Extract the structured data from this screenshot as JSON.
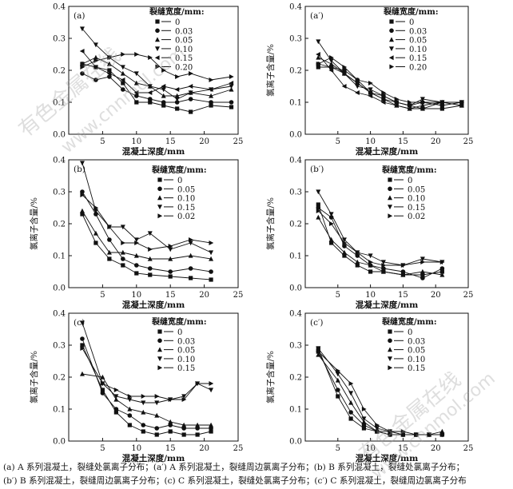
{
  "colors": {
    "ink": "#111111",
    "watermark": "#a0a0a0"
  },
  "axes": {
    "ylabel_left": "氯离子含量/%",
    "ylabel_right": "氯离子含量/%",
    "xlabel": "混凝土深度/mm",
    "legend_title": "裂缝宽度/mm:"
  },
  "watermark": {
    "text1": "有色金属在线",
    "text2": "www.cnnmol.com"
  },
  "caption": {
    "line1": "(a) A 系列混凝土，裂缝处氯离子分布；(a′) A 系列混凝土，裂缝周边氯离子分布；(b) B 系列混凝土，裂缝处氯离子分布；",
    "line2": "(b′) B 系列混凝土，裂缝周边氯离子分布；(c) C 系列混凝土，裂缝处氯离子分布；(c′) C 系列混凝土，裂缝周边氯离子分布"
  },
  "chart_data": [
    {
      "type": "line",
      "panel": "(a)",
      "legend_title": "裂缝宽度/mm:",
      "xlim": [
        0,
        25
      ],
      "ylim": [
        0,
        0.4
      ],
      "xticks": [
        5,
        10,
        15,
        20,
        25
      ],
      "yticks": [
        0.0,
        0.1,
        0.2,
        0.3,
        0.4
      ],
      "xlabel": "混凝土深度/mm",
      "ylabel": "",
      "x": [
        2,
        4,
        6,
        8,
        10,
        12,
        14,
        16,
        18,
        21,
        24
      ],
      "series": [
        {
          "name": "0",
          "marker": "square",
          "values": [
            0.22,
            0.21,
            0.2,
            0.16,
            0.1,
            0.1,
            0.09,
            0.08,
            0.07,
            0.09,
            0.085
          ]
        },
        {
          "name": "0.03",
          "marker": "circle",
          "values": [
            0.19,
            0.17,
            0.18,
            0.14,
            0.12,
            0.11,
            0.1,
            0.1,
            0.11,
            0.1,
            0.1
          ]
        },
        {
          "name": "0.05",
          "marker": "triangle",
          "values": [
            0.22,
            0.24,
            0.22,
            0.19,
            0.16,
            0.15,
            0.12,
            0.12,
            0.13,
            0.12,
            0.14
          ]
        },
        {
          "name": "0.10",
          "marker": "tri-down",
          "values": [
            0.33,
            0.28,
            0.24,
            0.21,
            0.19,
            0.15,
            0.14,
            0.11,
            0.13,
            0.14,
            0.15
          ]
        },
        {
          "name": "0.15",
          "marker": "tri-left",
          "values": [
            0.26,
            0.21,
            0.19,
            0.17,
            0.13,
            0.13,
            0.15,
            0.14,
            0.15,
            0.14,
            0.16
          ]
        },
        {
          "name": "0.20",
          "marker": "tri-right",
          "values": [
            0.21,
            0.23,
            0.24,
            0.25,
            0.25,
            0.24,
            0.2,
            0.18,
            0.19,
            0.17,
            0.18
          ]
        }
      ]
    },
    {
      "type": "line",
      "panel": "(a′)",
      "legend_title": "裂缝宽度/mm:",
      "xlim": [
        0,
        25
      ],
      "ylim": [
        0,
        0.4
      ],
      "xticks": [
        5,
        10,
        15,
        20,
        25
      ],
      "yticks": [
        0.0,
        0.1,
        0.2,
        0.3,
        0.4
      ],
      "xlabel": "混凝土深度/mm",
      "ylabel": "氯离子含量/%",
      "x": [
        2,
        4,
        6,
        8,
        10,
        12,
        14,
        16,
        18,
        21,
        24
      ],
      "series": [
        {
          "name": "0",
          "marker": "square",
          "values": [
            0.21,
            0.21,
            0.19,
            0.16,
            0.13,
            0.11,
            0.1,
            0.09,
            0.08,
            0.08,
            0.09
          ]
        },
        {
          "name": "0.03",
          "marker": "circle",
          "values": [
            0.22,
            0.21,
            0.2,
            0.17,
            0.13,
            0.12,
            0.1,
            0.09,
            0.1,
            0.09,
            0.1
          ]
        },
        {
          "name": "0.05",
          "marker": "triangle",
          "values": [
            0.24,
            0.22,
            0.19,
            0.16,
            0.13,
            0.11,
            0.09,
            0.08,
            0.09,
            0.1,
            0.09
          ]
        },
        {
          "name": "0.10",
          "marker": "tri-down",
          "values": [
            0.29,
            0.23,
            0.19,
            0.15,
            0.14,
            0.12,
            0.1,
            0.09,
            0.11,
            0.1,
            0.1
          ]
        },
        {
          "name": "0.15",
          "marker": "tri-left",
          "values": [
            0.25,
            0.2,
            0.15,
            0.13,
            0.12,
            0.1,
            0.09,
            0.08,
            0.08,
            0.1,
            0.1
          ]
        },
        {
          "name": "0.20",
          "marker": "tri-right",
          "values": [
            0.22,
            0.24,
            0.21,
            0.17,
            0.16,
            0.13,
            0.11,
            0.1,
            0.1,
            0.1,
            0.1
          ]
        }
      ]
    },
    {
      "type": "line",
      "panel": "(b)",
      "legend_title": "裂缝宽度/mm:",
      "xlim": [
        0,
        25
      ],
      "ylim": [
        0,
        0.4
      ],
      "xticks": [
        5,
        10,
        15,
        20,
        25
      ],
      "yticks": [
        0.0,
        0.1,
        0.2,
        0.3,
        0.4
      ],
      "xlabel": "混凝土深度/mm",
      "ylabel": "氯离子含量/%",
      "x": [
        2,
        4,
        6,
        8,
        10,
        12,
        15,
        18,
        21
      ],
      "series": [
        {
          "name": "0",
          "marker": "square",
          "values": [
            0.23,
            0.14,
            0.09,
            0.07,
            0.045,
            0.04,
            0.035,
            0.03,
            0.025
          ]
        },
        {
          "name": "0.05",
          "marker": "circle",
          "values": [
            0.3,
            0.23,
            0.15,
            0.09,
            0.07,
            0.06,
            0.05,
            0.06,
            0.05
          ]
        },
        {
          "name": "0.10",
          "marker": "triangle",
          "values": [
            0.24,
            0.17,
            0.11,
            0.11,
            0.1,
            0.09,
            0.09,
            0.1,
            0.09
          ]
        },
        {
          "name": "0.15",
          "marker": "tri-down",
          "values": [
            0.39,
            0.24,
            0.19,
            0.19,
            0.15,
            0.17,
            0.12,
            0.14,
            0.11
          ]
        },
        {
          "name": "0.02",
          "marker": "tri-right",
          "values": [
            0.29,
            0.25,
            0.19,
            0.14,
            0.14,
            0.12,
            0.13,
            0.15,
            0.14
          ]
        }
      ]
    },
    {
      "type": "line",
      "panel": "(b′)",
      "legend_title": "裂缝宽度/mm:",
      "xlim": [
        0,
        25
      ],
      "ylim": [
        0,
        0.4
      ],
      "xticks": [
        5,
        10,
        15,
        20,
        25
      ],
      "yticks": [
        0.0,
        0.1,
        0.2,
        0.3,
        0.4
      ],
      "xlabel": "混凝土深度/mm",
      "ylabel": "氯离子含量/%",
      "x": [
        2,
        4,
        6,
        8,
        10,
        12,
        15,
        18,
        21
      ],
      "series": [
        {
          "name": "0",
          "marker": "square",
          "values": [
            0.26,
            0.14,
            0.1,
            0.07,
            0.05,
            0.05,
            0.04,
            0.04,
            0.05
          ]
        },
        {
          "name": "0.05",
          "marker": "circle",
          "values": [
            0.25,
            0.22,
            0.13,
            0.1,
            0.07,
            0.06,
            0.05,
            0.03,
            0.06
          ]
        },
        {
          "name": "0.10",
          "marker": "triangle",
          "values": [
            0.22,
            0.15,
            0.11,
            0.08,
            0.07,
            0.05,
            0.04,
            0.05,
            0.04
          ]
        },
        {
          "name": "0.15",
          "marker": "tri-down",
          "values": [
            0.3,
            0.23,
            0.15,
            0.11,
            0.1,
            0.08,
            0.07,
            0.09,
            0.08
          ]
        },
        {
          "name": "0.02",
          "marker": "tri-right",
          "values": [
            0.24,
            0.2,
            0.14,
            0.11,
            0.08,
            0.07,
            0.07,
            0.08,
            0.08
          ]
        }
      ]
    },
    {
      "type": "line",
      "panel": "(c)",
      "legend_title": "裂缝宽度/mm:",
      "xlim": [
        0,
        25
      ],
      "ylim": [
        0,
        0.4
      ],
      "xticks": [
        5,
        10,
        15,
        20,
        25
      ],
      "yticks": [
        0.0,
        0.1,
        0.2,
        0.3,
        0.4
      ],
      "xlabel": "混凝土深度/mm",
      "ylabel": "氯离子含量/%",
      "x": [
        2,
        5,
        7,
        9,
        11,
        13,
        15,
        17,
        19,
        21
      ],
      "series": [
        {
          "name": "0",
          "marker": "square",
          "values": [
            0.3,
            0.16,
            0.09,
            0.05,
            0.03,
            0.02,
            0.03,
            0.02,
            0.02,
            0.03
          ]
        },
        {
          "name": "0.03",
          "marker": "circle",
          "values": [
            0.32,
            0.15,
            0.1,
            0.08,
            0.05,
            0.04,
            0.05,
            0.04,
            0.04,
            0.04
          ]
        },
        {
          "name": "0.05",
          "marker": "triangle",
          "values": [
            0.21,
            0.2,
            0.13,
            0.1,
            0.09,
            0.08,
            0.06,
            0.05,
            0.05,
            0.05
          ]
        },
        {
          "name": "0.10",
          "marker": "tri-down",
          "values": [
            0.37,
            0.18,
            0.14,
            0.13,
            0.12,
            0.12,
            0.13,
            0.14,
            0.18,
            0.16
          ]
        },
        {
          "name": "0.15",
          "marker": "tri-right",
          "values": [
            0.29,
            0.18,
            0.16,
            0.14,
            0.14,
            0.14,
            0.13,
            0.13,
            0.18,
            0.18
          ]
        }
      ]
    },
    {
      "type": "line",
      "panel": "(c′)",
      "legend_title": "裂缝宽度/mm:",
      "xlim": [
        0,
        25
      ],
      "ylim": [
        0,
        0.4
      ],
      "xticks": [
        5,
        10,
        15,
        20,
        25
      ],
      "yticks": [
        0.0,
        0.1,
        0.2,
        0.3,
        0.4
      ],
      "xlabel": "混凝土深度/mm",
      "ylabel": "氯离子含量/%",
      "x": [
        2,
        5,
        7,
        9,
        11,
        13,
        15,
        17,
        19,
        21
      ],
      "series": [
        {
          "name": "0",
          "marker": "square",
          "values": [
            0.29,
            0.14,
            0.07,
            0.04,
            0.03,
            0.02,
            0.02,
            0.02,
            0.02,
            0.02
          ]
        },
        {
          "name": "0.03",
          "marker": "circle",
          "values": [
            0.28,
            0.16,
            0.09,
            0.05,
            0.03,
            0.02,
            0.02,
            0.02,
            0.02,
            0.02
          ]
        },
        {
          "name": "0.05",
          "marker": "triangle",
          "values": [
            0.27,
            0.19,
            0.12,
            0.06,
            0.03,
            0.03,
            0.02,
            0.02,
            0.02,
            0.03
          ]
        },
        {
          "name": "0.10",
          "marker": "tri-down",
          "values": [
            0.29,
            0.21,
            0.15,
            0.07,
            0.04,
            0.03,
            0.02,
            0.02,
            0.02,
            0.02
          ]
        },
        {
          "name": "0.15",
          "marker": "tri-right",
          "values": [
            0.28,
            0.22,
            0.18,
            0.1,
            0.05,
            0.03,
            0.03,
            0.02,
            0.02,
            0.02
          ]
        }
      ]
    }
  ]
}
